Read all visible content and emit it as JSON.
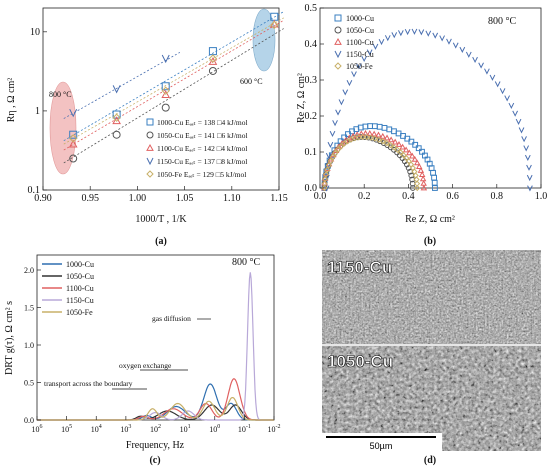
{
  "chart_data": [
    {
      "panel": "(a)",
      "type": "scatter",
      "xlabel": "1000/T , 1/K",
      "ylabel": "Rη , Ω cm²",
      "xlim": [
        0.9,
        1.15
      ],
      "ylim": [
        0.1,
        20
      ],
      "yscale": "log",
      "x_ticks": [
        "0.90",
        "0.95",
        "1.00",
        "1.05",
        "1.10",
        "1.15"
      ],
      "y_ticks": [
        {
          "v": 0.1,
          "label": "0.1"
        },
        {
          "v": 1,
          "label": "1"
        },
        {
          "v": 10,
          "label": "10"
        }
      ],
      "annotations": {
        "left": "800 °C",
        "right": "600 °C"
      },
      "legend_position": "bottom-right",
      "series": [
        {
          "name": "1000-Cu Eₐₑₜ = 138 □4 kJ/mol",
          "marker": "square",
          "color": "#3a7fc1",
          "x": [
            0.932,
            0.978,
            1.03,
            1.08,
            1.145
          ],
          "y": [
            0.5,
            0.9,
            2.05,
            5.7,
            15.5
          ],
          "fit": [
            [
              0.922,
              0.42
            ],
            [
              1.155,
              18
            ]
          ]
        },
        {
          "name": "1050-Cu Eₐₑₜ = 141 □6 kJ/mol",
          "marker": "circle",
          "color": "#555555",
          "x": [
            0.932,
            0.978,
            1.03,
            1.08
          ],
          "y": [
            0.25,
            0.5,
            1.1,
            3.2
          ],
          "fit": [
            [
              0.922,
              0.22
            ],
            [
              1.155,
              11
            ]
          ]
        },
        {
          "name": "1100-Cu Eₐₑₜ = 142 □4 kJ/mol",
          "marker": "triangle",
          "color": "#e06060",
          "x": [
            0.932,
            0.978,
            1.03,
            1.08,
            1.145
          ],
          "y": [
            0.38,
            0.75,
            1.6,
            4.2,
            12.5
          ],
          "fit": [
            [
              0.922,
              0.32
            ],
            [
              1.155,
              14
            ]
          ]
        },
        {
          "name": "1150-Cu Eₐₑₜ = 137 □8 kJ/mol",
          "marker": "tri-down",
          "color": "#4a6fb0",
          "x": [
            0.932,
            0.978,
            1.03
          ],
          "y": [
            0.95,
            1.9,
            4.6
          ],
          "fit": [
            [
              0.922,
              0.8
            ],
            [
              1.045,
              5.5
            ]
          ]
        },
        {
          "name": "1050-Fe Eₐₑₜ = 129 □5 kJ/mol",
          "marker": "diamond",
          "color": "#c8b068",
          "x": [
            0.932,
            0.978,
            1.03,
            1.08,
            1.145
          ],
          "y": [
            0.45,
            0.82,
            1.8,
            4.6,
            12.2
          ],
          "fit": [
            [
              0.922,
              0.38
            ],
            [
              1.155,
              15
            ]
          ]
        }
      ]
    },
    {
      "panel": "(b)",
      "type": "scatter",
      "xlabel": "Re Z, Ω cm²",
      "ylabel": "Re Z, Ω cm²",
      "xlim": [
        0,
        1.0
      ],
      "ylim": [
        0,
        0.5
      ],
      "x_ticks": [
        "0.0",
        "0.2",
        "0.4",
        "0.6",
        "0.8",
        "1.0"
      ],
      "y_ticks": [
        "0.0",
        "0.1",
        "0.2",
        "0.3",
        "0.4",
        "0.5"
      ],
      "annotation": "800 °C",
      "legend_position": "top-left",
      "series": [
        {
          "name": "1000-Cu",
          "marker": "square",
          "color": "#3a7fc1",
          "arc": [
            0.02,
            0.52,
            0.17
          ]
        },
        {
          "name": "1050-Cu",
          "marker": "circle",
          "color": "#555555",
          "arc": [
            0.02,
            0.42,
            0.14
          ]
        },
        {
          "name": "1100-Cu",
          "marker": "triangle",
          "color": "#e06060",
          "arc": [
            0.02,
            0.47,
            0.15
          ]
        },
        {
          "name": "1150-Cu",
          "marker": "tri-down",
          "color": "#4a6fb0",
          "arc": [
            0.03,
            0.95,
            0.43
          ]
        },
        {
          "name": "1050-Fe",
          "marker": "diamond",
          "color": "#c8b068",
          "arc": [
            0.02,
            0.44,
            0.14
          ]
        }
      ]
    },
    {
      "panel": "(c)",
      "type": "line",
      "xlabel": "Frequency, Hz",
      "ylabel": "DRT g(τ), Ω cm² s",
      "xscale": "log-reversed",
      "x_ticks": [
        {
          "e": 6
        },
        {
          "e": 5
        },
        {
          "e": 4
        },
        {
          "e": 3
        },
        {
          "e": 2
        },
        {
          "e": 1
        },
        {
          "e": 0
        },
        {
          "e": -1
        },
        {
          "e": -2
        }
      ],
      "ylim": [
        0,
        2.2
      ],
      "y_ticks": [
        "0.0",
        "0.5",
        "1.0",
        "1.5",
        "2.0"
      ],
      "annotations": [
        "800 °C",
        "gas diffusion",
        "oxygen exchange",
        "transport across the boundary"
      ],
      "legend_position": "top-left",
      "series": [
        {
          "name": "1000-Cu",
          "color": "#2f6fb0",
          "peaks": [
            [
              2.3,
              0.06,
              0.15
            ],
            [
              1.3,
              0.18,
              0.3
            ],
            [
              0.15,
              0.48,
              0.22
            ],
            [
              -0.55,
              0.22,
              0.18
            ]
          ]
        },
        {
          "name": "1050-Cu",
          "color": "#333333",
          "peaks": [
            [
              2.5,
              0.05,
              0.15
            ],
            [
              1.6,
              0.12,
              0.3
            ],
            [
              0.1,
              0.2,
              0.25
            ],
            [
              -0.7,
              0.2,
              0.2
            ]
          ]
        },
        {
          "name": "1100-Cu",
          "color": "#e06060",
          "peaks": [
            [
              2.4,
              0.05,
              0.15
            ],
            [
              1.4,
              0.15,
              0.3
            ],
            [
              0.3,
              0.22,
              0.2
            ],
            [
              -0.65,
              0.55,
              0.2
            ]
          ]
        },
        {
          "name": "1150-Cu",
          "color": "#b8a8d8",
          "peaks": [
            [
              2.0,
              0.1,
              0.2
            ],
            [
              0.9,
              0.12,
              0.2
            ],
            [
              -1.2,
              1.97,
              0.09
            ]
          ]
        },
        {
          "name": "1050-Fe",
          "color": "#c8b068",
          "peaks": [
            [
              2.1,
              0.15,
              0.15
            ],
            [
              1.25,
              0.22,
              0.25
            ],
            [
              0.2,
              0.25,
              0.2
            ],
            [
              -0.6,
              0.3,
              0.18
            ]
          ]
        }
      ]
    }
  ],
  "micrograph": {
    "panel": "(d)",
    "label_top": "1150-Cu",
    "label_bottom": "1050-Cu",
    "scale_bar": "50µm"
  }
}
